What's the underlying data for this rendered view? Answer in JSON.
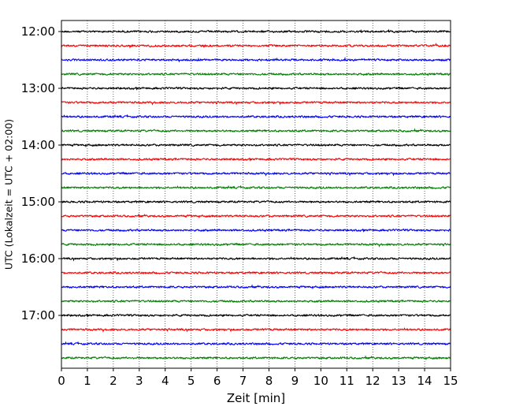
{
  "chart_data": {
    "type": "line",
    "subtype": "helicorder",
    "title": "",
    "xlabel": "Zeit  [min]",
    "ylabel": "UTC (Lokalzeit = UTC + 02:00)",
    "xlim": [
      0,
      15
    ],
    "x_ticks": [
      "0",
      "1",
      "2",
      "3",
      "4",
      "5",
      "6",
      "7",
      "8",
      "9",
      "10",
      "11",
      "12",
      "13",
      "14",
      "15"
    ],
    "y_tick_labels": [
      "12:00",
      "13:00",
      "14:00",
      "15:00",
      "16:00",
      "17:00"
    ],
    "grid": "vertical-dotted",
    "trace_start": "12:00",
    "trace_interval_min": 15,
    "trace_count": 24,
    "color_cycle": [
      "#000000",
      "#ff0000",
      "#0000ff",
      "#008000"
    ]
  }
}
